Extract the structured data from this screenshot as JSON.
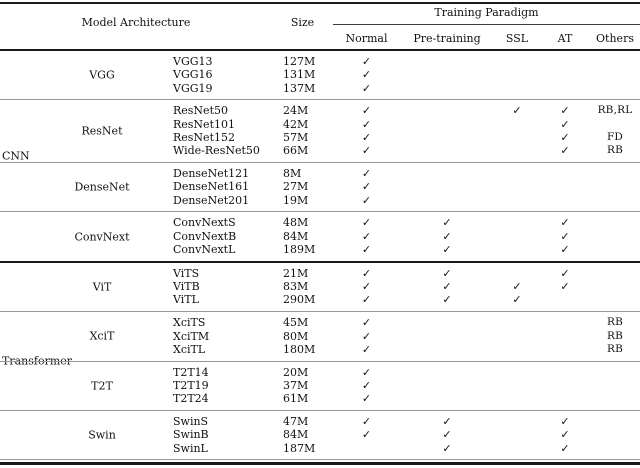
{
  "colors": {
    "text": "#111111",
    "rule_thick": "#1a1a1a",
    "rule_thin": "#979797"
  },
  "header": {
    "model_architecture": "Model Architecture",
    "size": "Size",
    "training_paradigm": "Training Paradigm",
    "paradigms": [
      "Normal",
      "Pre-training",
      "SSL",
      "AT",
      "Others"
    ]
  },
  "check_glyph": "✓",
  "groups": [
    {
      "category": "CNN",
      "families": [
        {
          "name": "VGG",
          "models": [
            {
              "model": "VGG13",
              "size": "127M",
              "normal": "✓",
              "pretraining": "",
              "ssl": "",
              "at": "",
              "others": ""
            },
            {
              "model": "VGG16",
              "size": "131M",
              "normal": "✓",
              "pretraining": "",
              "ssl": "",
              "at": "",
              "others": ""
            },
            {
              "model": "VGG19",
              "size": "137M",
              "normal": "✓",
              "pretraining": "",
              "ssl": "",
              "at": "",
              "others": ""
            }
          ]
        },
        {
          "name": "ResNet",
          "models": [
            {
              "model": "ResNet50",
              "size": "24M",
              "normal": "✓",
              "pretraining": "",
              "ssl": "✓",
              "at": "✓",
              "others": "RB,RL"
            },
            {
              "model": "ResNet101",
              "size": "42M",
              "normal": "✓",
              "pretraining": "",
              "ssl": "",
              "at": "✓",
              "others": ""
            },
            {
              "model": "ResNet152",
              "size": "57M",
              "normal": "✓",
              "pretraining": "",
              "ssl": "",
              "at": "✓",
              "others": "FD"
            },
            {
              "model": "Wide-ResNet50",
              "size": "66M",
              "normal": "✓",
              "pretraining": "",
              "ssl": "",
              "at": "✓",
              "others": "RB"
            }
          ]
        },
        {
          "name": "DenseNet",
          "models": [
            {
              "model": "DenseNet121",
              "size": "8M",
              "normal": "✓",
              "pretraining": "",
              "ssl": "",
              "at": "",
              "others": ""
            },
            {
              "model": "DenseNet161",
              "size": "27M",
              "normal": "✓",
              "pretraining": "",
              "ssl": "",
              "at": "",
              "others": ""
            },
            {
              "model": "DenseNet201",
              "size": "19M",
              "normal": "✓",
              "pretraining": "",
              "ssl": "",
              "at": "",
              "others": ""
            }
          ]
        },
        {
          "name": "ConvNext",
          "models": [
            {
              "model": "ConvNextS",
              "size": "48M",
              "normal": "✓",
              "pretraining": "✓",
              "ssl": "",
              "at": "✓",
              "others": ""
            },
            {
              "model": "ConvNextB",
              "size": "84M",
              "normal": "✓",
              "pretraining": "✓",
              "ssl": "",
              "at": "✓",
              "others": ""
            },
            {
              "model": "ConvNextL",
              "size": "189M",
              "normal": "✓",
              "pretraining": "✓",
              "ssl": "",
              "at": "✓",
              "others": ""
            }
          ]
        }
      ]
    },
    {
      "category": "Transformer",
      "families": [
        {
          "name": "ViT",
          "models": [
            {
              "model": "ViTS",
              "size": "21M",
              "normal": "✓",
              "pretraining": "✓",
              "ssl": "",
              "at": "✓",
              "others": ""
            },
            {
              "model": "ViTB",
              "size": "83M",
              "normal": "✓",
              "pretraining": "✓",
              "ssl": "✓",
              "at": "✓",
              "others": ""
            },
            {
              "model": "ViTL",
              "size": "290M",
              "normal": "✓",
              "pretraining": "✓",
              "ssl": "✓",
              "at": "",
              "others": ""
            }
          ]
        },
        {
          "name": "XciT",
          "models": [
            {
              "model": "XciTS",
              "size": "45M",
              "normal": "✓",
              "pretraining": "",
              "ssl": "",
              "at": "",
              "others": "RB"
            },
            {
              "model": "XciTM",
              "size": "80M",
              "normal": "✓",
              "pretraining": "",
              "ssl": "",
              "at": "",
              "others": "RB"
            },
            {
              "model": "XciTL",
              "size": "180M",
              "normal": "✓",
              "pretraining": "",
              "ssl": "",
              "at": "",
              "others": "RB"
            }
          ]
        },
        {
          "name": "T2T",
          "models": [
            {
              "model": "T2T14",
              "size": "20M",
              "normal": "✓",
              "pretraining": "",
              "ssl": "",
              "at": "",
              "others": ""
            },
            {
              "model": "T2T19",
              "size": "37M",
              "normal": "✓",
              "pretraining": "",
              "ssl": "",
              "at": "",
              "others": ""
            },
            {
              "model": "T2T24",
              "size": "61M",
              "normal": "✓",
              "pretraining": "",
              "ssl": "",
              "at": "",
              "others": ""
            }
          ]
        },
        {
          "name": "Swin",
          "models": [
            {
              "model": "SwinS",
              "size": "47M",
              "normal": "✓",
              "pretraining": "✓",
              "ssl": "",
              "at": "✓",
              "others": ""
            },
            {
              "model": "SwinB",
              "size": "84M",
              "normal": "✓",
              "pretraining": "✓",
              "ssl": "",
              "at": "✓",
              "others": ""
            },
            {
              "model": "SwinL",
              "size": "187M",
              "normal": "",
              "pretraining": "✓",
              "ssl": "",
              "at": "✓",
              "others": ""
            }
          ]
        }
      ]
    }
  ]
}
